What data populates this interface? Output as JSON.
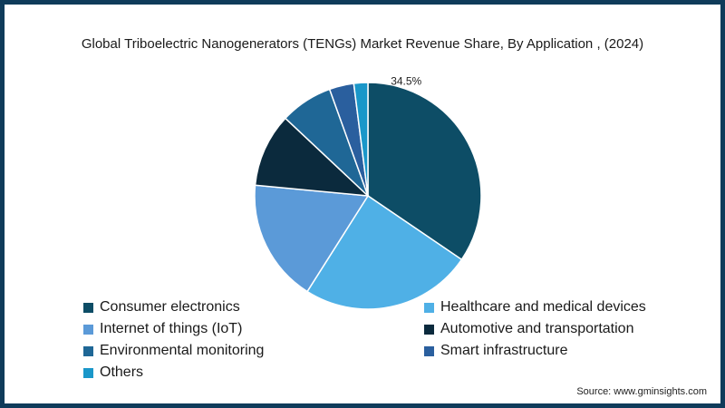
{
  "chart_data": {
    "type": "pie",
    "title": "Global Triboelectric Nanogenerators (TENGs) Market Revenue Share, By Application , (2024)",
    "slices": [
      {
        "label": "Consumer electronics",
        "value": 34.5,
        "color": "#0d4d66",
        "data_label": "34.5%"
      },
      {
        "label": "Healthcare and medical devices",
        "value": 24.5,
        "color": "#4fb0e6"
      },
      {
        "label": "Internet of things (IoT)",
        "value": 17.5,
        "color": "#5b9ad8"
      },
      {
        "label": "Automotive and transportation",
        "value": 10.5,
        "color": "#0b2a3d"
      },
      {
        "label": "Environmental monitoring",
        "value": 7.5,
        "color": "#1f6796"
      },
      {
        "label": "Smart infrastructure",
        "value": 3.5,
        "color": "#2a5f9e"
      },
      {
        "label": "Others",
        "value": 2.0,
        "color": "#1a97c9"
      }
    ],
    "legend_position": "bottom"
  },
  "source": "Source: www.gminsights.com"
}
